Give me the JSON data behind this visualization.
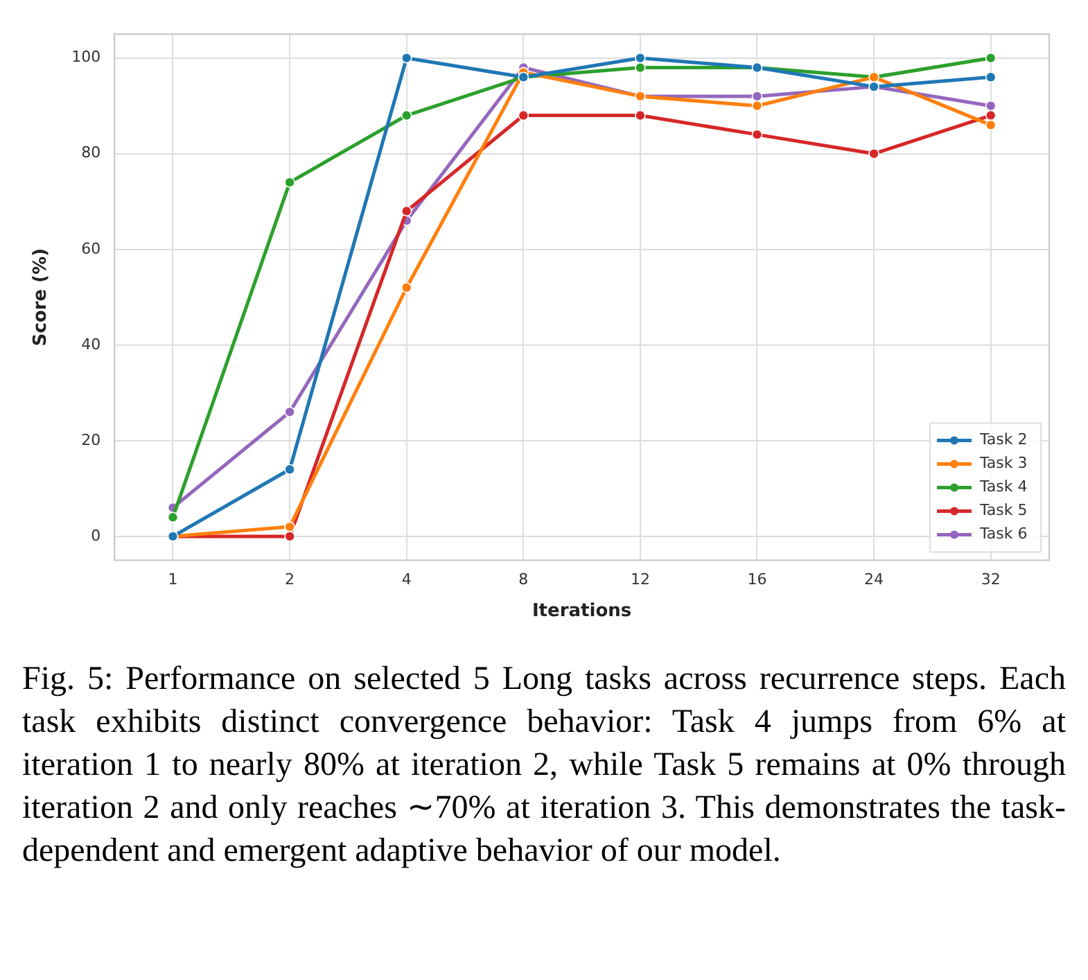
{
  "chart_data": {
    "type": "line",
    "xlabel": "Iterations",
    "ylabel": "Score (%)",
    "categories": [
      "1",
      "2",
      "4",
      "8",
      "12",
      "16",
      "24",
      "32"
    ],
    "series": [
      {
        "name": "Task 2",
        "color": "#1f77b4",
        "values": [
          0,
          14,
          100,
          96,
          100,
          98,
          94,
          96
        ]
      },
      {
        "name": "Task 3",
        "color": "#ff7f0e",
        "values": [
          0,
          2,
          52,
          97,
          92,
          90,
          96,
          86
        ]
      },
      {
        "name": "Task 4",
        "color": "#2ca02c",
        "values": [
          4,
          74,
          88,
          96,
          98,
          98,
          96,
          100
        ]
      },
      {
        "name": "Task 5",
        "color": "#d62728",
        "values": [
          0,
          0,
          68,
          88,
          88,
          84,
          80,
          88
        ]
      },
      {
        "name": "Task 6",
        "color": "#9467bd",
        "values": [
          6,
          26,
          66,
          98,
          92,
          92,
          94,
          90
        ]
      }
    ],
    "ylim": [
      -5,
      105
    ],
    "yticks": [
      0,
      20,
      40,
      60,
      80,
      100
    ],
    "grid": true,
    "legend": "bottom right",
    "marker": "circle",
    "line_style": "solid",
    "annotations": [
      "Fig. 5: Performance on selected 5 Long tasks across recurrence steps. Each task exhibits distinct convergence behavior: Task 4 jumps from 6% at iteration 1 to nearly 80% at iteration 2, while Task 5 remains at 0% through iteration 2 and only reaches ∼70% at iteration 3. This demonstrates the task-dependent and emergent adaptive behavior of our model."
    ]
  }
}
